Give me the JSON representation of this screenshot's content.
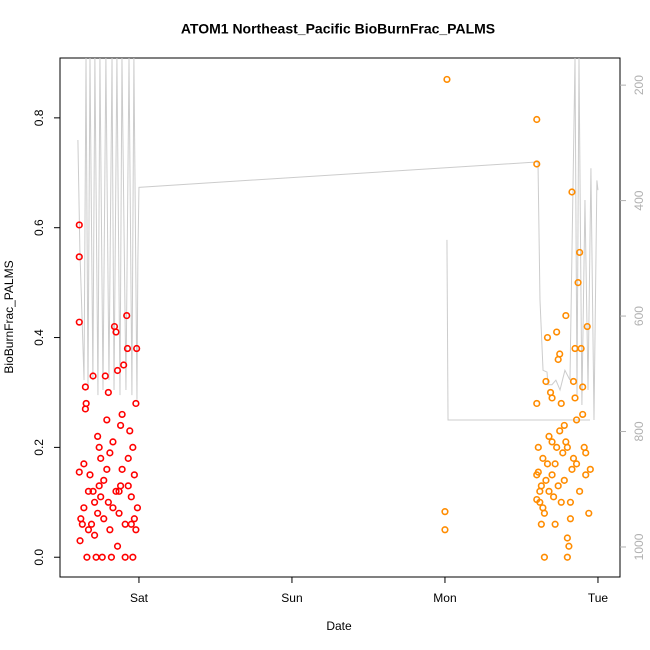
{
  "chart_data": {
    "type": "scatter",
    "title": "ATOM1 Northeast_Pacific BioBurnFrac_PALMS",
    "x_label": "Date",
    "y_label": "BioBurnFrac_PALMS",
    "xlim": [
      -0.516,
      3.144
    ],
    "xticks": [
      {
        "value": 0,
        "label": "Sat"
      },
      {
        "value": 1,
        "label": "Sun"
      },
      {
        "value": 2,
        "label": "Mon"
      },
      {
        "value": 3,
        "label": "Tue"
      }
    ],
    "ylim": [
      -0.036,
      0.909
    ],
    "yticks": [
      {
        "value": 0,
        "label": "0.0"
      },
      0.2,
      0.4,
      0.6,
      0.8
    ],
    "y2lim": [
      1052,
      153
    ],
    "y2ticks": [
      200,
      400,
      600,
      800,
      1000
    ],
    "series": [
      {
        "color": "#ff0000",
        "x": [
          -0.39,
          -0.39,
          -0.39,
          -0.39,
          -0.38,
          -0.385,
          -0.37,
          -0.36,
          -0.35,
          -0.345,
          -0.35,
          -0.34,
          -0.33,
          -0.32,
          -0.3,
          -0.29,
          -0.28,
          -0.27,
          -0.26,
          -0.25,
          -0.24,
          -0.23,
          -0.22,
          -0.21,
          -0.2,
          -0.19,
          -0.18,
          -0.17,
          -0.16,
          -0.15,
          -0.14,
          -0.13,
          -0.12,
          -0.11,
          -0.1,
          -0.09,
          -0.08,
          -0.075,
          -0.07,
          -0.06,
          -0.05,
          -0.04,
          -0.03,
          -0.02,
          -0.015,
          -0.01,
          -0.36,
          -0.33,
          -0.31,
          -0.29,
          -0.27,
          -0.25,
          -0.23,
          -0.21,
          -0.19,
          -0.17,
          -0.15,
          -0.13,
          -0.11,
          -0.09,
          -0.07,
          -0.05,
          -0.03,
          -0.02,
          -0.14,
          -0.3,
          -0.26,
          -0.2,
          -0.12,
          -0.04
        ],
        "values": [
          0.605,
          0.547,
          0.428,
          0.155,
          0.07,
          0.03,
          0.06,
          0.17,
          0.31,
          0.28,
          0.27,
          0.0,
          0.12,
          0.15,
          0.33,
          0.1,
          0.0,
          0.22,
          0.2,
          0.18,
          0.0,
          0.14,
          0.33,
          0.25,
          0.3,
          0.19,
          0.0,
          0.21,
          0.42,
          0.41,
          0.34,
          0.12,
          0.24,
          0.26,
          0.35,
          0.0,
          0.44,
          0.38,
          0.13,
          0.23,
          0.06,
          0.0,
          0.07,
          0.28,
          0.38,
          0.09,
          0.09,
          0.05,
          0.06,
          0.04,
          0.08,
          0.11,
          0.07,
          0.16,
          0.05,
          0.09,
          0.12,
          0.08,
          0.16,
          0.06,
          0.18,
          0.11,
          0.15,
          0.05,
          0.02,
          0.12,
          0.13,
          0.1,
          0.13,
          0.2
        ]
      },
      {
        "color": "#ff8c00",
        "x": [
          2.013,
          2.0,
          2.0,
          2.6,
          2.6,
          2.6,
          2.61,
          2.61,
          2.62,
          2.63,
          2.63,
          2.64,
          2.65,
          2.66,
          2.67,
          2.68,
          2.69,
          2.7,
          2.71,
          2.72,
          2.73,
          2.74,
          2.75,
          2.76,
          2.77,
          2.78,
          2.79,
          2.8,
          2.81,
          2.82,
          2.83,
          2.84,
          2.85,
          2.86,
          2.87,
          2.88,
          2.89,
          2.9,
          2.91,
          2.92,
          2.93,
          2.94,
          2.95,
          2.6,
          2.62,
          2.64,
          2.66,
          2.68,
          2.7,
          2.72,
          2.74,
          2.76,
          2.78,
          2.8,
          2.82,
          2.84,
          2.86,
          2.88,
          2.9,
          2.92,
          2.65,
          2.8,
          2.7,
          2.75,
          2.85,
          2.6,
          2.67,
          2.73,
          2.79,
          2.83
        ],
        "values": [
          0.87,
          0.083,
          0.05,
          0.797,
          0.716,
          0.28,
          0.2,
          0.155,
          0.1,
          0.06,
          0.13,
          0.18,
          0.08,
          0.32,
          0.4,
          0.22,
          0.3,
          0.15,
          0.11,
          0.06,
          0.41,
          0.36,
          0.23,
          0.28,
          0.19,
          0.14,
          0.44,
          0.0,
          0.02,
          0.1,
          0.665,
          0.32,
          0.38,
          0.17,
          0.5,
          0.555,
          0.38,
          0.31,
          0.2,
          0.15,
          0.42,
          0.08,
          0.16,
          0.105,
          0.12,
          0.09,
          0.14,
          0.12,
          0.21,
          0.17,
          0.13,
          0.1,
          0.24,
          0.2,
          0.07,
          0.18,
          0.25,
          0.12,
          0.26,
          0.19,
          0.0,
          0.035,
          0.29,
          0.37,
          0.29,
          0.15,
          0.17,
          0.2,
          0.21,
          0.16
        ]
      },
      {
        "type": "line",
        "axis": "y2",
        "color": "#cccccc",
        "x": [
          -0.399,
          -0.386,
          -0.359,
          -0.346,
          -0.333,
          -0.32,
          -0.301,
          -0.288,
          -0.268,
          -0.255,
          -0.235,
          -0.216,
          -0.196,
          -0.176,
          -0.163,
          -0.144,
          -0.124,
          -0.111,
          -0.085,
          -0.065,
          -0.046,
          -0.033,
          -0.013,
          -0.007,
          0,
          2.608,
          2.621,
          2.641,
          2.667,
          2.673,
          2.699,
          2.725,
          2.752,
          2.784,
          2.817,
          2.85,
          2.863,
          2.876,
          2.895,
          2.915,
          2.935,
          2.954,
          2.974,
          2.993,
          3.0,
          null,
          2.013,
          2.02,
          2.948
        ],
        "values": [
          295,
          486,
          711,
          153,
          728,
          153,
          711,
          153,
          737,
          153,
          728,
          153,
          711,
          153,
          728,
          153,
          737,
          153,
          728,
          153,
          737,
          153,
          745,
          503,
          377,
          333,
          572,
          694,
          697,
          719,
          719,
          711,
          728,
          694,
          711,
          153,
          737,
          153,
          754,
          399,
          728,
          344,
          780,
          365,
          382,
          null,
          468,
          780,
          780
        ]
      }
    ]
  }
}
